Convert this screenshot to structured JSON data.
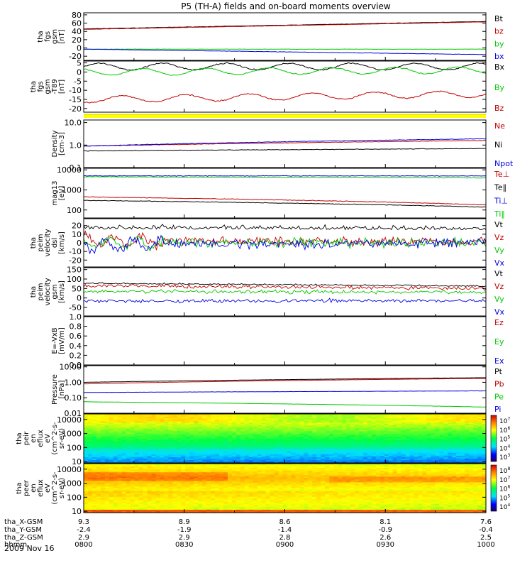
{
  "title": "P5 (TH-A) fields and on-board moments overview",
  "date": "2009 Nov 16",
  "ephemeris": {
    "labels": [
      "tha_X-GSM",
      "tha_Y-GSM",
      "tha_Z-GSM",
      "hhmm"
    ],
    "columns": [
      {
        "x": "9.3",
        "y": "-2.4",
        "z": "2.9",
        "t": "0800"
      },
      {
        "x": "8.9",
        "y": "-1.9",
        "z": "2.9",
        "t": "0830"
      },
      {
        "x": "8.6",
        "y": "-1.4",
        "z": "2.8",
        "t": "0900"
      },
      {
        "x": "8.1",
        "y": "-0.9",
        "z": "2.6",
        "t": "0930"
      },
      {
        "x": "7.6",
        "y": "-0.4",
        "z": "2.5",
        "t": "1000"
      }
    ]
  },
  "chart_data": [
    {
      "type": "line",
      "id": "fgs_gsm",
      "ylabel": [
        "tha",
        "fgs",
        "gsm",
        "[nT]"
      ],
      "ylim": [
        -30,
        85
      ],
      "ticks": [
        "80",
        "60",
        "40",
        "20",
        "0",
        "-20"
      ],
      "x_range": [
        "0800",
        "1000"
      ],
      "series": [
        {
          "name": "Bt",
          "color": "#000000",
          "start": 46,
          "end": 64
        },
        {
          "name": "bz",
          "color": "#c00000",
          "start": 45,
          "end": 63
        },
        {
          "name": "by",
          "color": "#00c800",
          "start": -3,
          "end": -3
        },
        {
          "name": "bx",
          "color": "#0000e0",
          "start": -3,
          "end": -16
        }
      ]
    },
    {
      "type": "line",
      "id": "fgs_gsm_t89",
      "ylabel": [
        "tha",
        "fgs",
        "gsm",
        "-T89",
        "[nT]"
      ],
      "ylim": [
        -22,
        6
      ],
      "ticks": [
        "5",
        "0",
        "-5",
        "-10",
        "-15",
        "-20"
      ],
      "series": [
        {
          "name": "Bx",
          "color": "#000000",
          "start": 3,
          "end": 3
        },
        {
          "name": "By",
          "color": "#00c800",
          "start": 0,
          "end": 1
        },
        {
          "name": "Bz",
          "color": "#c00000",
          "start": -15,
          "end": -12
        }
      ]
    },
    {
      "type": "bar",
      "id": "mode_bar",
      "colors": {
        "track": "#ffff00",
        "edge": "#d0d000"
      }
    },
    {
      "type": "line",
      "id": "density",
      "scale": "log",
      "ylabel": [
        "Density",
        "[cm-3]"
      ],
      "ylim": [
        0.1,
        13
      ],
      "ticks": [
        "10.0",
        "1.0",
        "0.1"
      ],
      "series": [
        {
          "name": "Ne",
          "color": "#c00000",
          "start": 0.9,
          "end": 1.6
        },
        {
          "name": "Ni",
          "color": "#000000",
          "start": 0.55,
          "end": 0.7
        },
        {
          "name": "Npot",
          "color": "#0000e0",
          "start": 0.9,
          "end": 1.9
        }
      ]
    },
    {
      "type": "line",
      "id": "temperature",
      "scale": "log",
      "ylabel": [
        "mag13",
        "[eV]"
      ],
      "ylim": [
        40,
        12000
      ],
      "ticks": [
        "10000",
        "1000",
        "100"
      ],
      "series": [
        {
          "name": "Te⊥",
          "color": "#c00000",
          "start": 450,
          "end": 180
        },
        {
          "name": "Te‖",
          "color": "#000000",
          "start": 300,
          "end": 140
        },
        {
          "name": "Ti⊥",
          "color": "#0000e0",
          "start": 5000,
          "end": 5000
        },
        {
          "name": "Ti‖",
          "color": "#00c800",
          "start": 4500,
          "end": 4000
        }
      ]
    },
    {
      "type": "line",
      "id": "velocity_dsl",
      "ylabel": [
        "tha",
        "peim",
        "velocity",
        "dsl",
        "[km/s]"
      ],
      "ylim": [
        -28,
        28
      ],
      "ticks": [
        "20",
        "10",
        "0",
        "-10",
        "-20"
      ],
      "series": [
        {
          "name": "Vt",
          "color": "#000000",
          "start": 16,
          "end": 15
        },
        {
          "name": "Vz",
          "color": "#c00000",
          "start": 2,
          "end": 2
        },
        {
          "name": "Vy",
          "color": "#00c800",
          "start": 0,
          "end": 0
        },
        {
          "name": "Vx",
          "color": "#0000e0",
          "start": -2,
          "end": 0
        }
      ]
    },
    {
      "type": "line",
      "id": "velocity_gsm",
      "ylabel": [
        "tha",
        "peim",
        "velocity",
        "gsm",
        "[km/s]"
      ],
      "ylim": [
        -95,
        160
      ],
      "ticks": [
        "150",
        "100",
        "50",
        "0",
        "-50"
      ],
      "series": [
        {
          "name": "Vt",
          "color": "#000000",
          "start": 75,
          "end": 60
        },
        {
          "name": "Vz",
          "color": "#c00000",
          "start": 65,
          "end": 50
        },
        {
          "name": "Vy",
          "color": "#00c800",
          "start": 35,
          "end": 30
        },
        {
          "name": "Vx",
          "color": "#0000e0",
          "start": -15,
          "end": -15
        }
      ]
    },
    {
      "type": "line",
      "id": "e_vxb",
      "ylabel": [
        "E=-VxB",
        "[mV/m]"
      ],
      "ylim": [
        0,
        1
      ],
      "ticks": [
        "1.0",
        "0.8",
        "0.6",
        "0.4",
        "0.2",
        "0.0"
      ],
      "series": [
        {
          "name": "Ez",
          "color": "#c00000"
        },
        {
          "name": "Ey",
          "color": "#00c800"
        },
        {
          "name": "Ex",
          "color": "#0000e0"
        }
      ]
    },
    {
      "type": "line",
      "id": "pressure",
      "scale": "log",
      "ylabel": [
        "Pressure",
        "[nPa]"
      ],
      "ylim": [
        0.01,
        12
      ],
      "ticks": [
        "10.00",
        "1.00",
        "0.10",
        "0.01"
      ],
      "series": [
        {
          "name": "Pt",
          "color": "#000000",
          "start": 1.0,
          "end": 2.0
        },
        {
          "name": "Pb",
          "color": "#c00000",
          "start": 0.8,
          "end": 1.8
        },
        {
          "name": "Pe",
          "color": "#00c800",
          "start": 0.055,
          "end": 0.025
        },
        {
          "name": "Pi",
          "color": "#0000e0",
          "start": 0.22,
          "end": 0.28
        }
      ]
    },
    {
      "type": "heatmap",
      "id": "peir_spectrogram",
      "scale": "log",
      "ylabel": [
        "tha",
        "peir",
        "en",
        "eflux",
        "eV",
        "(cm^2-s-",
        "sr-eV)"
      ],
      "ylim": [
        8,
        25000
      ],
      "ticks": [
        "10000",
        "1000",
        "100",
        "10"
      ],
      "colorbar_exponents": [
        "7",
        "6",
        "5",
        "4",
        "3"
      ]
    },
    {
      "type": "heatmap",
      "id": "peer_spectrogram",
      "scale": "log",
      "ylabel": [
        "tha",
        "peer",
        "en",
        "eflux",
        "eV",
        "(cm^2-s-",
        "sr-eV)"
      ],
      "ylim": [
        8,
        25000
      ],
      "ticks": [
        "10000",
        "1000",
        "100",
        "10"
      ],
      "colorbar_exponents": [
        "8",
        "7",
        "6",
        "5",
        "4"
      ]
    }
  ]
}
